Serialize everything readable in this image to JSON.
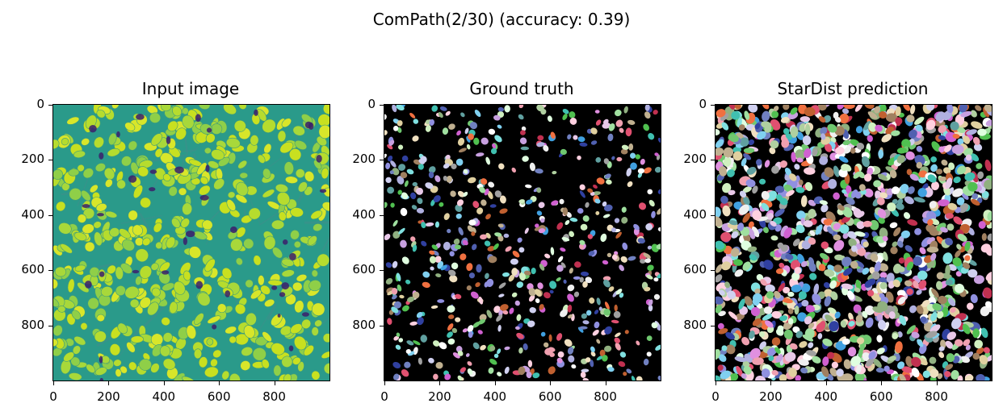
{
  "figure": {
    "suptitle": "ComPath(2/30) (accuracy: 0.39)",
    "panels": [
      {
        "id": "input",
        "title": "Input image",
        "kind": "intensity"
      },
      {
        "id": "gt",
        "title": "Ground truth",
        "kind": "labels-sparse"
      },
      {
        "id": "pred",
        "title": "StarDist prediction",
        "kind": "labels-dense"
      }
    ],
    "axis": {
      "x_ticks": [
        "0",
        "200",
        "400",
        "600",
        "800"
      ],
      "y_ticks": [
        "0",
        "200",
        "400",
        "600",
        "800"
      ],
      "x_tick_values": [
        0,
        200,
        400,
        600,
        800
      ],
      "y_tick_values": [
        0,
        200,
        400,
        600,
        800
      ],
      "range": [
        0,
        1000
      ]
    },
    "colors": {
      "input_background": "#2a9a8a",
      "input_cells": "#c8e020",
      "input_dark": "#3b1f6b",
      "label_background": "#000000"
    }
  }
}
